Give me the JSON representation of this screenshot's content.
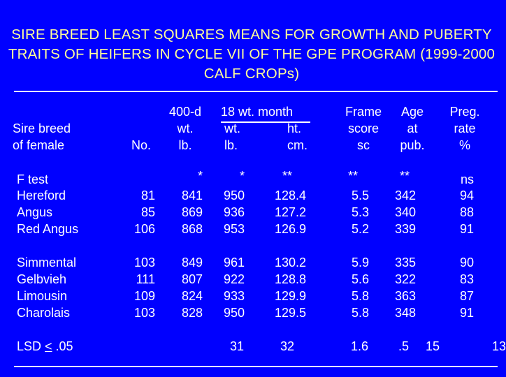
{
  "title": "SIRE BREED LEAST SQUARES MEANS FOR GROWTH AND PUBERTY TRAITS OF HEIFERS IN CYCLE VII OF THE GPE PROGRAM (1999-2000 CALF CROPs)",
  "headers": {
    "sire_breed": [
      "Sire breed",
      "of female"
    ],
    "no": "No.",
    "wt400": [
      "400-d",
      "wt.",
      "lb."
    ],
    "month18": "18 wt. month",
    "month18_wt": [
      "wt.",
      "lb."
    ],
    "month18_ht": [
      "ht.",
      "cm."
    ],
    "frame": [
      "Frame",
      "score",
      "sc"
    ],
    "age": [
      "Age",
      "at",
      "pub."
    ],
    "preg": [
      "Preg.",
      "rate",
      "%"
    ]
  },
  "ftest": {
    "label": "F test",
    "wt400": "*",
    "wt18": "*",
    "ht18": "**",
    "frame": "**",
    "age": "**",
    "preg": "ns"
  },
  "group1": [
    {
      "breed": "Hereford",
      "no": "81",
      "wt400": "841",
      "wt18": "950",
      "ht18": "128.4",
      "frame": "5.5",
      "age": "342",
      "preg": "94"
    },
    {
      "breed": "Angus",
      "no": "85",
      "wt400": "869",
      "wt18": "936",
      "ht18": "127.2",
      "frame": "5.3",
      "age": "340",
      "preg": "88"
    },
    {
      "breed": "Red Angus",
      "no": "106",
      "wt400": "868",
      "wt18": "953",
      "ht18": "126.9",
      "frame": "5.2",
      "age": "339",
      "preg": "91"
    }
  ],
  "group2": [
    {
      "breed": "Simmental",
      "no": "103",
      "wt400": "849",
      "wt18": "961",
      "ht18": "130.2",
      "frame": "5.9",
      "age": "335",
      "preg": "90"
    },
    {
      "breed": "Gelbvieh",
      "no": "111",
      "wt400": "807",
      "wt18": "922",
      "ht18": "128.8",
      "frame": "5.6",
      "age": "322",
      "preg": "83"
    },
    {
      "breed": "Limousin",
      "no": "109",
      "wt400": "824",
      "wt18": "933",
      "ht18": "129.9",
      "frame": "5.8",
      "age": "363",
      "preg": "87"
    },
    {
      "breed": "Charolais",
      "no": "103",
      "wt400": "828",
      "wt18": "950",
      "ht18": "129.5",
      "frame": "5.8",
      "age": "348",
      "preg": "91"
    }
  ],
  "lsd": {
    "label_pre": "LSD ",
    "label_sym": "<",
    "label_post": " .05",
    "wt18": "31",
    "ht18": "32",
    "frame": "1.6",
    "age": ".5",
    "age2": "15",
    "preg": "13"
  },
  "colors": {
    "background": "#0000ff",
    "title": "#ffff99",
    "text": "#ffffff"
  }
}
